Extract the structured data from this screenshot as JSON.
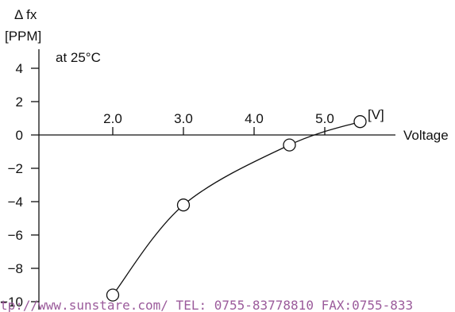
{
  "chart_data": {
    "type": "line",
    "ylabel_line1": "Δ fx",
    "ylabel_line2": "[PPM]",
    "condition": "at 25°C",
    "xlabel": "Voltage",
    "x_unit": "[V]",
    "x_ticks": [
      "2.0",
      "3.0",
      "4.0",
      "5.0"
    ],
    "y_ticks": [
      "4",
      "2",
      "0",
      "−2",
      "−4",
      "−6",
      "−8",
      "−10"
    ],
    "xlim": [
      1.0,
      6.0
    ],
    "ylim": [
      -10,
      6
    ],
    "series": [
      {
        "points": [
          {
            "x": 2.0,
            "y": -9.6
          },
          {
            "x": 3.0,
            "y": -4.2
          },
          {
            "x": 4.5,
            "y": -0.6
          },
          {
            "x": 5.5,
            "y": 0.8
          }
        ]
      }
    ],
    "grid": false
  },
  "watermark": "tp://www.sunstare.com/ TEL: 0755-83778810 FAX:0755-833"
}
